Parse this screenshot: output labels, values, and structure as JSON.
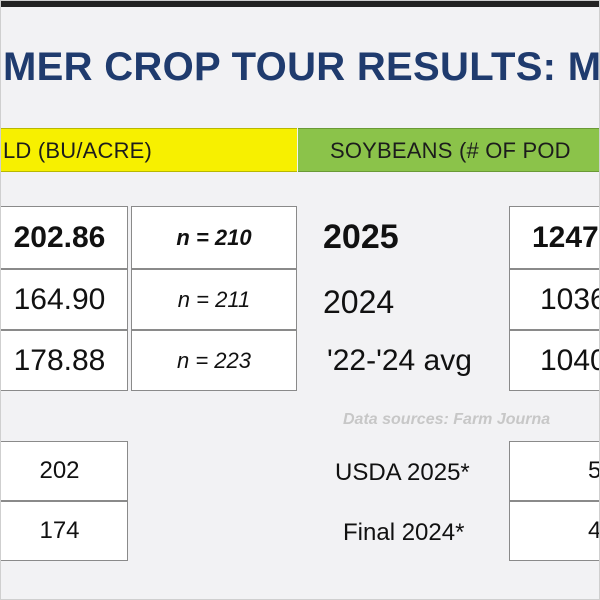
{
  "title": "MER CROP TOUR RESULTS: MI",
  "bands": {
    "corn": "LD (BU/ACRE)",
    "soybeans": "SOYBEANS (# OF POD"
  },
  "corn_rows": [
    {
      "value": "202.86",
      "n": "n = 210"
    },
    {
      "value": "164.90",
      "n": "n = 211"
    },
    {
      "value": "178.88",
      "n": "n = 223"
    }
  ],
  "years": [
    "2025",
    "2024",
    "'22-'24 avg"
  ],
  "soy_rows": [
    "1247",
    "1036",
    "1040"
  ],
  "source": "Data sources: Farm Journa",
  "usda_corn": [
    "202",
    "174"
  ],
  "usda_labels": [
    "USDA 2025*",
    "Final 2024*"
  ],
  "usda_soy": [
    "5",
    "4"
  ]
}
